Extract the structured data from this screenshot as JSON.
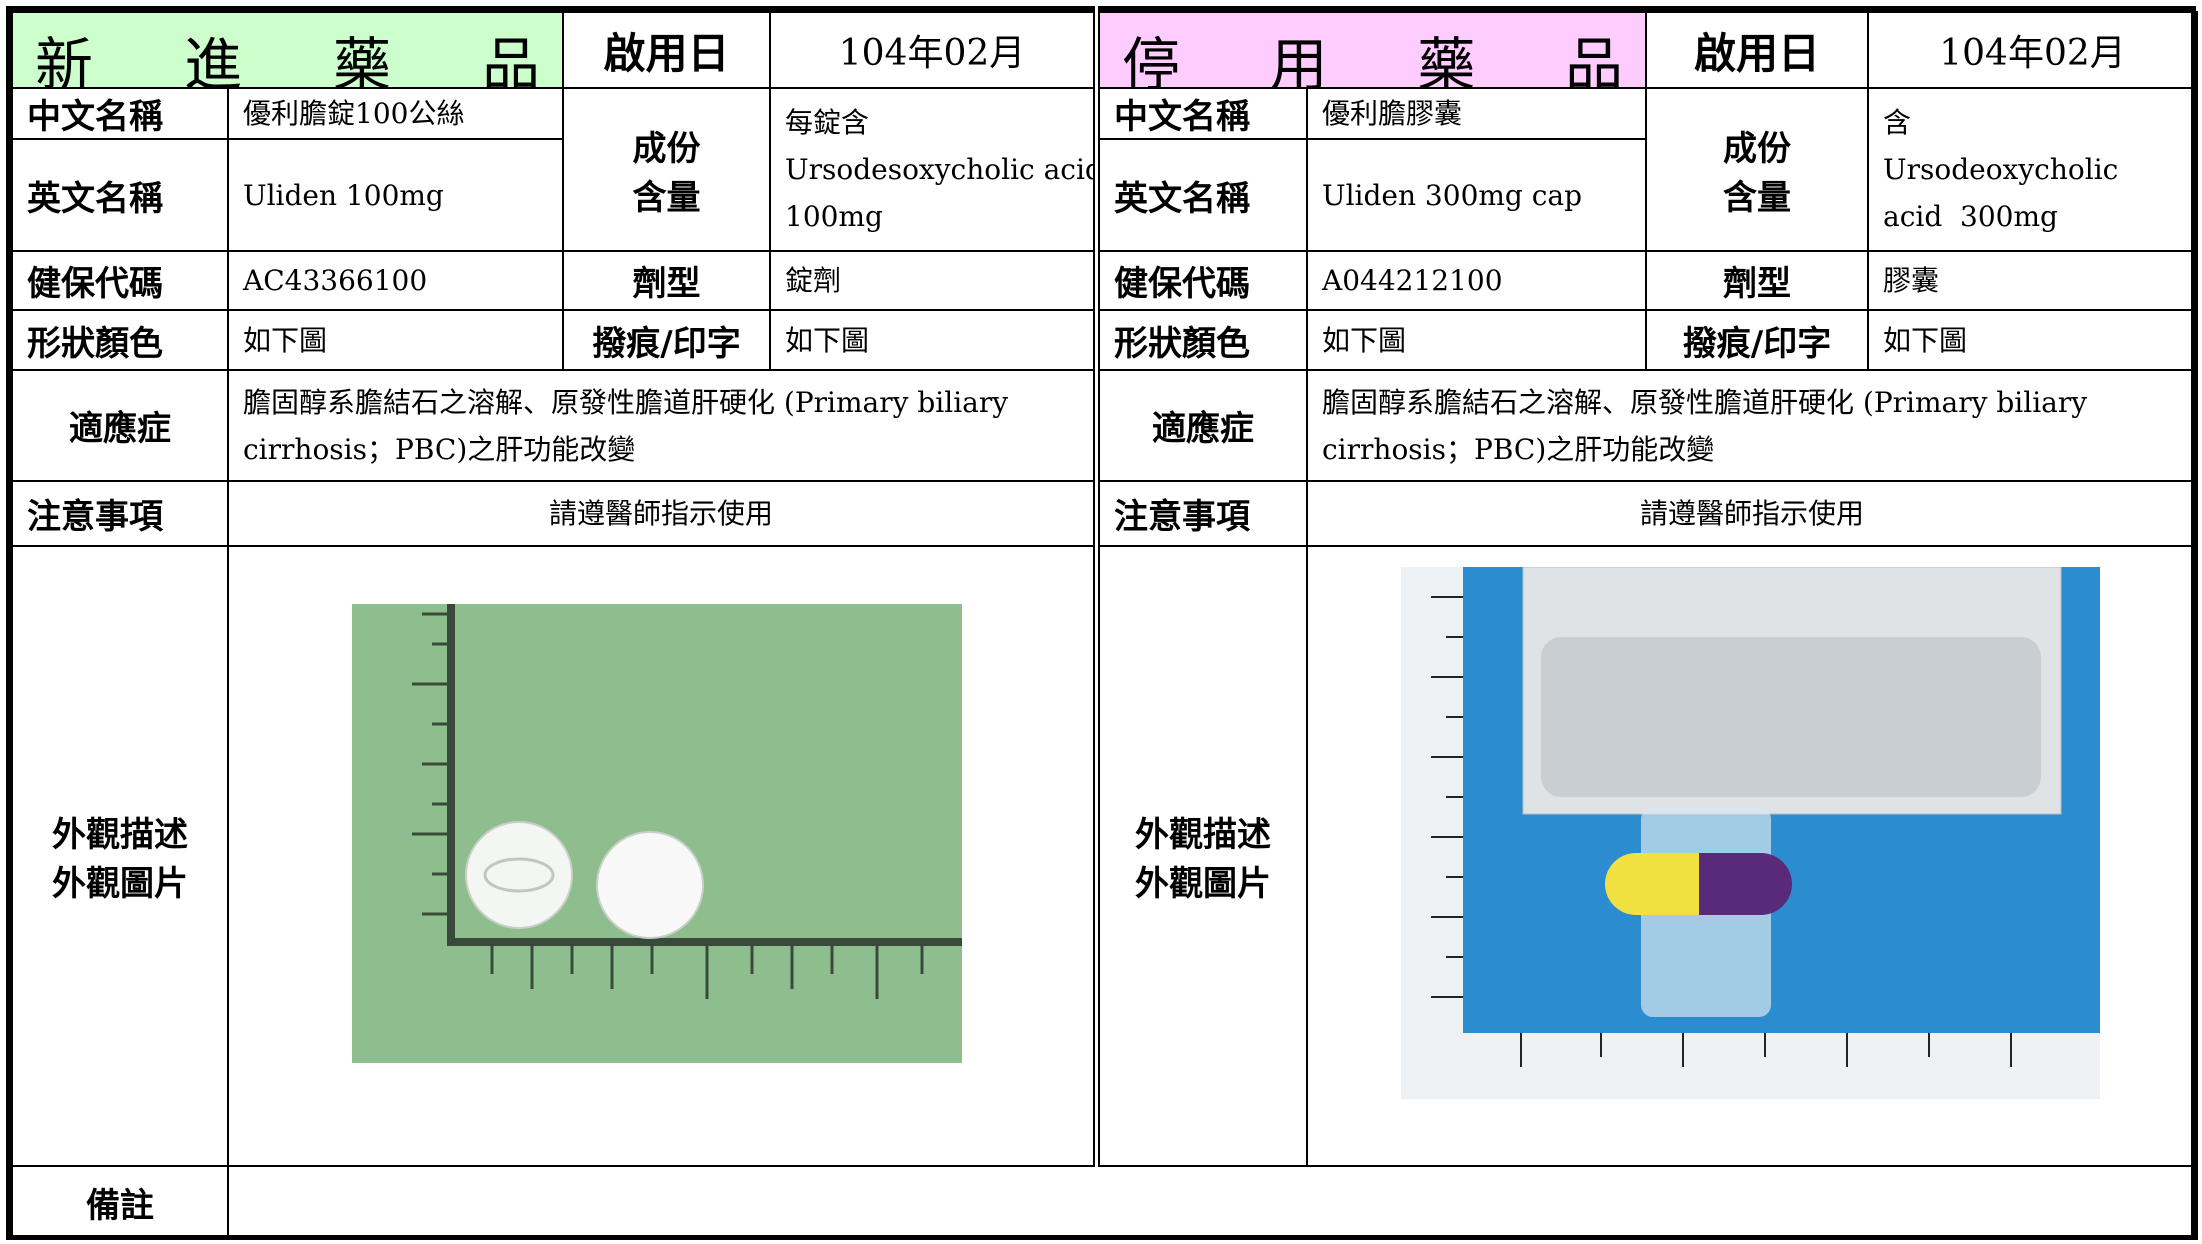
{
  "new_drug": {
    "title": "新進藥品",
    "date_label": "啟用日",
    "date": "104年02月",
    "chinese_name_label": "中文名稱",
    "chinese_name": "優利膽錠100公絲",
    "english_name_label": "英文名稱",
    "english_name": "Uliden 100mg",
    "ingredient_label": [
      "成份",
      "含量"
    ],
    "ingredient": [
      "每錠含",
      "Ursodesoxycholic acid",
      "100mg"
    ],
    "code_label": "健保代碼",
    "code": "AC43366100",
    "form_label": "劑型",
    "form": "錠劑",
    "shape_label": "形狀顏色",
    "shape": "如下圖",
    "marking_label": "撥痕/印字",
    "marking": "如下圖",
    "indication_label": "適應症",
    "indication": "膽固醇系膽結石之溶解、原發性膽道肝硬化 (Primary biliary cirrhosis；PBC)之肝功能改變",
    "caution_label": "注意事項",
    "caution": "請遵醫師指示使用",
    "appearance_label": [
      "外觀描述",
      "外觀圖片"
    ]
  },
  "discontinued_drug": {
    "title": "停用藥品",
    "date_label": "啟用日",
    "date": "104年02月",
    "chinese_name_label": "中文名稱",
    "chinese_name": "優利膽膠囊",
    "english_name_label": "英文名稱",
    "english_name": "Uliden 300mg cap",
    "ingredient_label": [
      "成份",
      "含量"
    ],
    "ingredient": [
      "含",
      "Ursodeoxycholic",
      "acid  300mg"
    ],
    "code_label": "健保代碼",
    "code": "A044212100",
    "form_label": "劑型",
    "form": "膠囊",
    "shape_label": "形狀顏色",
    "shape": "如下圖",
    "marking_label": "撥痕/印字",
    "marking": "如下圖",
    "indication_label": "適應症",
    "indication": "膽固醇系膽結石之溶解、原發性膽道肝硬化 (Primary biliary cirrhosis；PBC)之肝功能改變",
    "caution_label": "注意事項",
    "caution": "請遵醫師指示使用",
    "appearance_label": [
      "外觀描述",
      "外觀圖片"
    ]
  },
  "remarks": {
    "label": "備註"
  }
}
